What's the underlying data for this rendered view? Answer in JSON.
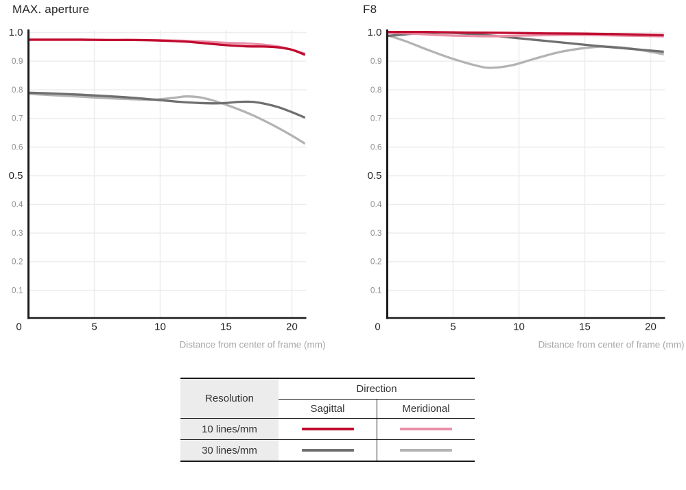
{
  "chart_data": [
    {
      "type": "line",
      "title": "MAX. aperture",
      "xlabel": "Distance from center of frame (mm)",
      "ylabel": "",
      "xlim": [
        0,
        21
      ],
      "ylim": [
        0,
        1.0
      ],
      "grid": true,
      "x_ticks": [
        {
          "label": "0",
          "value": 0
        },
        {
          "label": "5",
          "value": 5
        },
        {
          "label": "10",
          "value": 10
        },
        {
          "label": "15",
          "value": 15
        },
        {
          "label": "20",
          "value": 20
        }
      ],
      "y_ticks": [
        {
          "label": "1.0",
          "value": 1.0,
          "major": true
        },
        {
          "label": "0.9",
          "value": 0.9,
          "major": false
        },
        {
          "label": "0.8",
          "value": 0.8,
          "major": false
        },
        {
          "label": "0.7",
          "value": 0.7,
          "major": false
        },
        {
          "label": "0.6",
          "value": 0.6,
          "major": false
        },
        {
          "label": "0.5",
          "value": 0.5,
          "major": true
        },
        {
          "label": "0.4",
          "value": 0.4,
          "major": false
        },
        {
          "label": "0.3",
          "value": 0.3,
          "major": false
        },
        {
          "label": "0.2",
          "value": 0.2,
          "major": false
        },
        {
          "label": "0.1",
          "value": 0.1,
          "major": false
        }
      ],
      "series": [
        {
          "name": "10 lines/mm Sagittal",
          "color": "#c00b2f",
          "points": [
            [
              0,
              0.975
            ],
            [
              2,
              0.975
            ],
            [
              4,
              0.975
            ],
            [
              6,
              0.974
            ],
            [
              8,
              0.974
            ],
            [
              10,
              0.972
            ],
            [
              12,
              0.968
            ],
            [
              13.5,
              0.962
            ],
            [
              15,
              0.956
            ],
            [
              16.5,
              0.952
            ],
            [
              18,
              0.951
            ],
            [
              19,
              0.948
            ],
            [
              20,
              0.94
            ],
            [
              21,
              0.922
            ]
          ]
        },
        {
          "name": "10 lines/mm Meridional",
          "color": "#e98fa6",
          "points": [
            [
              0,
              0.975
            ],
            [
              2,
              0.975
            ],
            [
              4,
              0.975
            ],
            [
              6,
              0.974
            ],
            [
              8,
              0.974
            ],
            [
              10,
              0.973
            ],
            [
              12,
              0.971
            ],
            [
              13.5,
              0.968
            ],
            [
              15,
              0.964
            ],
            [
              16.5,
              0.962
            ],
            [
              18,
              0.957
            ],
            [
              19,
              0.951
            ],
            [
              20,
              0.94
            ],
            [
              21,
              0.926
            ]
          ]
        },
        {
          "name": "30 lines/mm Sagittal",
          "color": "#6f6f6f",
          "points": [
            [
              0,
              0.79
            ],
            [
              2,
              0.787
            ],
            [
              4,
              0.783
            ],
            [
              6,
              0.778
            ],
            [
              8,
              0.772
            ],
            [
              10,
              0.764
            ],
            [
              11.5,
              0.758
            ],
            [
              13,
              0.754
            ],
            [
              14.5,
              0.753
            ],
            [
              16,
              0.758
            ],
            [
              17,
              0.758
            ],
            [
              18,
              0.751
            ],
            [
              19,
              0.739
            ],
            [
              20,
              0.722
            ],
            [
              21,
              0.703
            ]
          ]
        },
        {
          "name": "30 lines/mm Meridional",
          "color": "#b3b3b3",
          "points": [
            [
              0,
              0.786
            ],
            [
              2,
              0.781
            ],
            [
              4,
              0.776
            ],
            [
              6,
              0.771
            ],
            [
              8,
              0.767
            ],
            [
              9.5,
              0.766
            ],
            [
              11,
              0.772
            ],
            [
              12,
              0.777
            ],
            [
              13,
              0.774
            ],
            [
              14,
              0.763
            ],
            [
              15,
              0.748
            ],
            [
              16,
              0.731
            ],
            [
              17,
              0.712
            ],
            [
              18,
              0.69
            ],
            [
              19,
              0.666
            ],
            [
              20,
              0.64
            ],
            [
              21,
              0.612
            ]
          ]
        }
      ]
    },
    {
      "type": "line",
      "title": "F8",
      "xlabel": "Distance from center of frame (mm)",
      "ylabel": "",
      "xlim": [
        0,
        21
      ],
      "ylim": [
        0,
        1.0
      ],
      "grid": true,
      "x_ticks": [
        {
          "label": "0",
          "value": 0
        },
        {
          "label": "5",
          "value": 5
        },
        {
          "label": "10",
          "value": 10
        },
        {
          "label": "15",
          "value": 15
        },
        {
          "label": "20",
          "value": 20
        }
      ],
      "y_ticks": [
        {
          "label": "1.0",
          "value": 1.0,
          "major": true
        },
        {
          "label": "0.9",
          "value": 0.9,
          "major": false
        },
        {
          "label": "0.8",
          "value": 0.8,
          "major": false
        },
        {
          "label": "0.7",
          "value": 0.7,
          "major": false
        },
        {
          "label": "0.6",
          "value": 0.6,
          "major": false
        },
        {
          "label": "0.5",
          "value": 0.5,
          "major": true
        },
        {
          "label": "0.4",
          "value": 0.4,
          "major": false
        },
        {
          "label": "0.3",
          "value": 0.3,
          "major": false
        },
        {
          "label": "0.2",
          "value": 0.2,
          "major": false
        },
        {
          "label": "0.1",
          "value": 0.1,
          "major": false
        }
      ],
      "series": [
        {
          "name": "10 lines/mm Sagittal",
          "color": "#c00b2f",
          "points": [
            [
              0,
              1.002
            ],
            [
              3,
              1.002
            ],
            [
              6,
              1.0
            ],
            [
              9,
              0.999
            ],
            [
              12,
              0.997
            ],
            [
              15,
              0.996
            ],
            [
              18,
              0.994
            ],
            [
              21,
              0.991
            ]
          ]
        },
        {
          "name": "10 lines/mm Meridional",
          "color": "#e98fa6",
          "points": [
            [
              0,
              1.0
            ],
            [
              2,
              0.996
            ],
            [
              4,
              0.991
            ],
            [
              6,
              0.988
            ],
            [
              8,
              0.987
            ],
            [
              10,
              0.989
            ],
            [
              12,
              0.991
            ],
            [
              14,
              0.992
            ],
            [
              16,
              0.991
            ],
            [
              18,
              0.989
            ],
            [
              21,
              0.987
            ]
          ]
        },
        {
          "name": "30 lines/mm Sagittal",
          "color": "#6f6f6f",
          "points": [
            [
              0,
              0.988
            ],
            [
              2,
              0.996
            ],
            [
              4,
              1.0
            ],
            [
              6,
              0.996
            ],
            [
              8,
              0.989
            ],
            [
              10,
              0.98
            ],
            [
              12,
              0.971
            ],
            [
              14,
              0.962
            ],
            [
              16,
              0.953
            ],
            [
              18,
              0.945
            ],
            [
              19.5,
              0.939
            ],
            [
              21,
              0.933
            ]
          ]
        },
        {
          "name": "30 lines/mm Meridional",
          "color": "#b3b3b3",
          "points": [
            [
              0,
              0.991
            ],
            [
              1.5,
              0.968
            ],
            [
              3,
              0.941
            ],
            [
              5,
              0.908
            ],
            [
              7,
              0.882
            ],
            [
              8,
              0.877
            ],
            [
              9.5,
              0.886
            ],
            [
              11,
              0.906
            ],
            [
              13,
              0.931
            ],
            [
              15,
              0.946
            ],
            [
              16.5,
              0.951
            ],
            [
              18,
              0.947
            ],
            [
              19.5,
              0.937
            ],
            [
              21,
              0.924
            ]
          ]
        }
      ]
    }
  ],
  "legend_table": {
    "resolution_header": "Resolution",
    "direction_header": "Direction",
    "direction_columns": [
      "Sagittal",
      "Meridional"
    ],
    "rows": [
      {
        "label": "10 lines/mm",
        "sagittal_color": "#c00b2f",
        "meridional_color": "#e98fa6"
      },
      {
        "label": "30 lines/mm",
        "sagittal_color": "#6f6f6f",
        "meridional_color": "#b3b3b3"
      }
    ]
  },
  "colors": {
    "axis": "#1a1a1a",
    "grid": "#ededed",
    "tick_major": "#262626",
    "tick_minor": "#919191",
    "axis_label": "#a6a6a6",
    "title": "#262626",
    "table_border": "#1a1a1a",
    "table_header_bg": "#ececec",
    "table_text": "#333333",
    "background": "#ffffff"
  }
}
